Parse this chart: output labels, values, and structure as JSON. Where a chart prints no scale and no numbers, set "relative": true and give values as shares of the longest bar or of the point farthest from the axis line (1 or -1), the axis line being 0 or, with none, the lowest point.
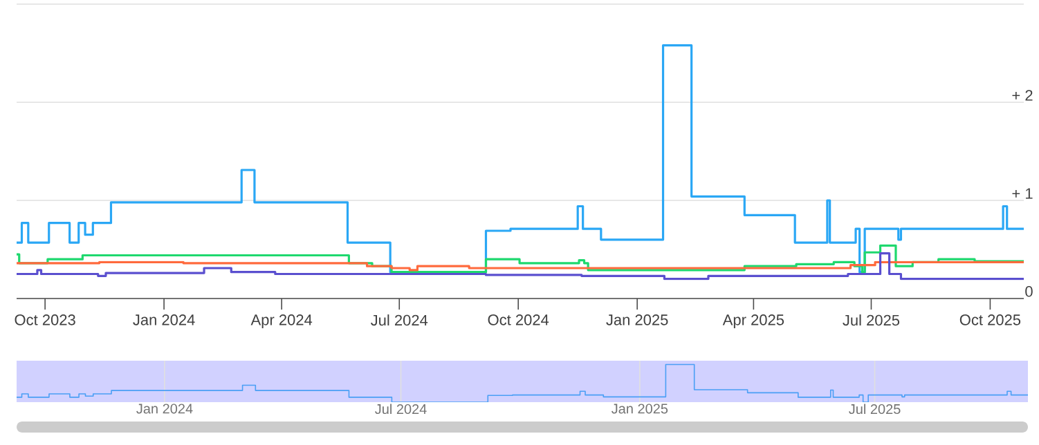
{
  "chart_data": [
    {
      "type": "step",
      "xlim": [
        "2023-09-09",
        "2025-10-27"
      ],
      "ylim": [
        0,
        3
      ],
      "xticks": [
        {
          "value": "2023-10-01",
          "label": "Oct 2023"
        },
        {
          "value": "2024-01-01",
          "label": "Jan 2024"
        },
        {
          "value": "2024-04-01",
          "label": "Apr 2024"
        },
        {
          "value": "2024-07-01",
          "label": "Jul 2024"
        },
        {
          "value": "2024-10-01",
          "label": "Oct 2024"
        },
        {
          "value": "2025-01-01",
          "label": "Jan 2025"
        },
        {
          "value": "2025-04-01",
          "label": "Apr 2025"
        },
        {
          "value": "2025-07-01",
          "label": "Jul 2025"
        },
        {
          "value": "2025-10-01",
          "label": "Oct 2025"
        }
      ],
      "yticks": [
        0,
        {
          "value": 1,
          "label": "+ 1"
        },
        {
          "value": 2,
          "label": "+ 2"
        },
        {
          "value": 3,
          "label": null
        }
      ],
      "grid": "y",
      "series": [
        {
          "color": "#2aa7f5",
          "x": [
            "2023-09-09",
            "2023-09-13",
            "2023-09-18",
            "2023-10-04",
            "2023-10-20",
            "2023-10-27",
            "2023-11-01",
            "2023-11-07",
            "2023-11-21",
            "2024-03-01",
            "2024-03-11",
            "2024-05-22",
            "2024-06-24",
            "2024-09-06",
            "2024-09-25",
            "2024-11-16",
            "2024-11-20",
            "2024-12-04",
            "2025-01-21",
            "2025-02-12",
            "2025-03-25",
            "2025-05-03",
            "2025-05-28",
            "2025-05-30",
            "2025-06-19",
            "2025-06-22",
            "2025-06-26",
            "2025-07-22",
            "2025-07-24",
            "2025-10-11",
            "2025-10-14",
            "2025-10-27"
          ],
          "values": [
            0.57,
            0.77,
            0.57,
            0.77,
            0.57,
            0.77,
            0.65,
            0.77,
            0.98,
            1.31,
            0.98,
            0.57,
            0.27,
            0.69,
            0.71,
            0.94,
            0.71,
            0.6,
            2.58,
            1.04,
            0.85,
            0.57,
            1.0,
            0.57,
            0.71,
            0.27,
            0.71,
            0.6,
            0.71,
            0.94,
            0.71,
            0.71
          ]
        },
        {
          "color": "#1ed86e",
          "x": [
            "2023-09-09",
            "2023-09-11",
            "2023-10-03",
            "2023-10-30",
            "2024-05-23",
            "2024-06-10",
            "2024-06-25",
            "2024-09-06",
            "2024-10-02",
            "2024-11-17",
            "2024-11-21",
            "2024-11-24",
            "2025-03-25",
            "2025-05-04",
            "2025-06-02",
            "2025-06-18",
            "2025-06-24",
            "2025-06-26",
            "2025-07-08",
            "2025-07-20",
            "2025-08-02",
            "2025-08-22",
            "2025-09-19",
            "2025-10-27"
          ],
          "values": [
            0.45,
            0.36,
            0.4,
            0.44,
            0.36,
            0.33,
            0.27,
            0.4,
            0.36,
            0.39,
            0.36,
            0.29,
            0.33,
            0.35,
            0.37,
            0.33,
            0.27,
            0.47,
            0.54,
            0.33,
            0.37,
            0.4,
            0.38,
            0.38
          ]
        },
        {
          "color": "#ff6a3d",
          "x": [
            "2023-09-09",
            "2023-11-12",
            "2024-01-16",
            "2024-06-06",
            "2024-06-25",
            "2024-07-09",
            "2024-07-15",
            "2024-08-24",
            "2025-05-30",
            "2025-06-15",
            "2025-07-04",
            "2025-10-27"
          ],
          "values": [
            0.36,
            0.37,
            0.36,
            0.33,
            0.31,
            0.29,
            0.33,
            0.31,
            0.31,
            0.34,
            0.37,
            0.37
          ]
        },
        {
          "color": "#5a4fcf",
          "x": [
            "2023-09-09",
            "2023-09-25",
            "2023-09-28",
            "2023-11-11",
            "2023-11-17",
            "2024-02-01",
            "2024-02-22",
            "2024-03-27",
            "2024-09-06",
            "2024-11-19",
            "2025-01-22",
            "2025-02-25",
            "2025-06-13",
            "2025-07-08",
            "2025-07-15",
            "2025-07-24",
            "2025-10-27"
          ],
          "values": [
            0.25,
            0.29,
            0.25,
            0.23,
            0.26,
            0.31,
            0.27,
            0.25,
            0.24,
            0.23,
            0.2,
            0.23,
            0.25,
            0.46,
            0.25,
            0.2,
            0.2
          ]
        }
      ]
    },
    {
      "type": "step",
      "relative": true,
      "xlim": [
        "2023-09-09",
        "2025-10-27"
      ],
      "tick_labels": "x",
      "grid": "x",
      "xticks": [
        {
          "value": "2024-01-01",
          "label": "Jan 2024"
        },
        {
          "value": "2024-07-01",
          "label": "Jul 2024"
        },
        {
          "value": "2025-01-01",
          "label": "Jan 2025"
        },
        {
          "value": "2025-07-01",
          "label": "Jul 2025"
        }
      ],
      "series": [
        {
          "color": "#4a9ff5",
          "x": [
            "2023-09-09",
            "2023-09-13",
            "2023-09-18",
            "2023-10-04",
            "2023-10-20",
            "2023-10-27",
            "2023-11-01",
            "2023-11-07",
            "2023-11-21",
            "2024-03-01",
            "2024-03-11",
            "2024-05-22",
            "2024-06-24",
            "2024-09-06",
            "2024-09-25",
            "2024-11-16",
            "2024-11-20",
            "2024-12-04",
            "2025-01-21",
            "2025-02-12",
            "2025-03-25",
            "2025-05-03",
            "2025-05-28",
            "2025-05-30",
            "2025-06-19",
            "2025-06-22",
            "2025-06-26",
            "2025-07-22",
            "2025-07-24",
            "2025-10-11",
            "2025-10-14",
            "2025-10-27"
          ],
          "values": [
            0.13,
            0.22,
            0.13,
            0.22,
            0.13,
            0.22,
            0.16,
            0.22,
            0.31,
            0.45,
            0.31,
            0.13,
            0,
            0.18,
            0.19,
            0.29,
            0.19,
            0.14,
            1,
            0.33,
            0.25,
            0.13,
            0.32,
            0.13,
            0.19,
            0,
            0.19,
            0.14,
            0.19,
            0.29,
            0.19,
            0.19
          ]
        }
      ]
    }
  ]
}
